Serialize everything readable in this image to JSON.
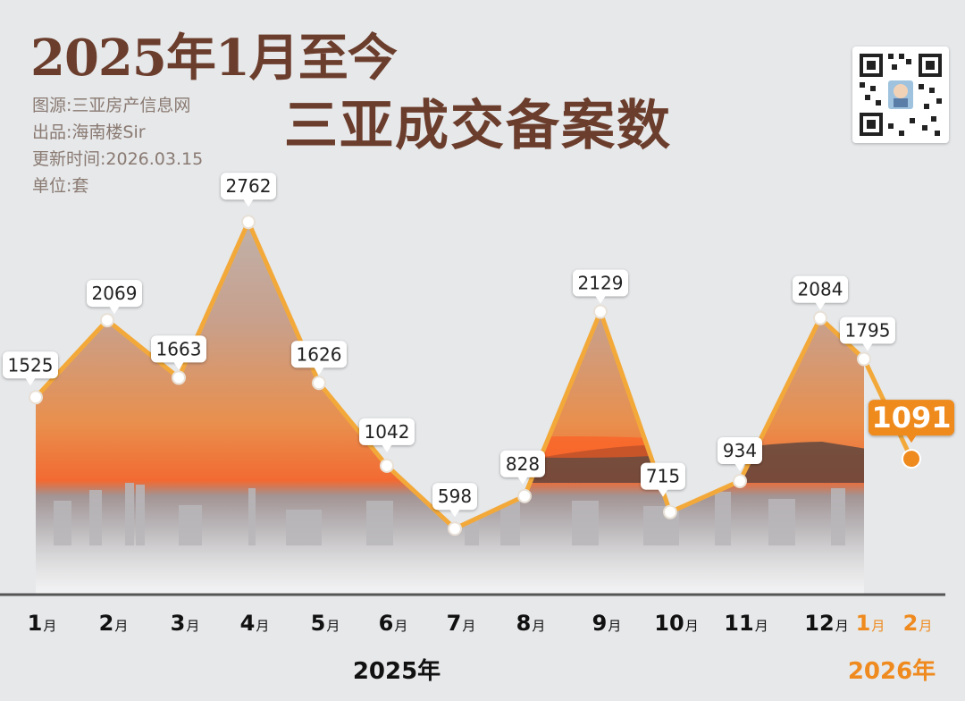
{
  "title_line1": "2025年1月至今",
  "title_line2": "三亚成交备案数",
  "meta": {
    "source": "图源:三亚房产信息网",
    "producer": "出品:海南楼Sir",
    "updated": "更新时间:2026.03.15",
    "unit": "单位:套"
  },
  "qr_icon": "qr-code-icon",
  "colors": {
    "line": "#f3a93a",
    "highlight": "#ef8a1e",
    "title": "#6b3d2c",
    "sky_top": "#c9b8ae",
    "sky_mid": "#e98f4d",
    "sun": "#f15a26",
    "sea": "#9d8f8c",
    "city": "#d4d6d8"
  },
  "chart_data": {
    "type": "line",
    "title": "2025年1月至今 三亚成交备案数",
    "unit": "套",
    "categories": [
      "1月",
      "2月",
      "3月",
      "4月",
      "5月",
      "6月",
      "7月",
      "8月",
      "9月",
      "10月",
      "11月",
      "12月",
      "1月",
      "2月"
    ],
    "month_numbers": [
      "1",
      "2",
      "3",
      "4",
      "5",
      "6",
      "7",
      "8",
      "9",
      "10",
      "11",
      "12",
      "1",
      "2"
    ],
    "month_suffix": "月",
    "years": [
      {
        "label": "2025年",
        "months": "1月–12月"
      },
      {
        "label": "2026年",
        "months": "1月–2月"
      }
    ],
    "values": [
      1525,
      2069,
      1663,
      2762,
      1626,
      1042,
      598,
      828,
      2129,
      715,
      934,
      2084,
      1795,
      1091
    ],
    "highlight_index": 13,
    "ylim": [
      0,
      2900
    ],
    "grid": false,
    "legend": "none"
  }
}
